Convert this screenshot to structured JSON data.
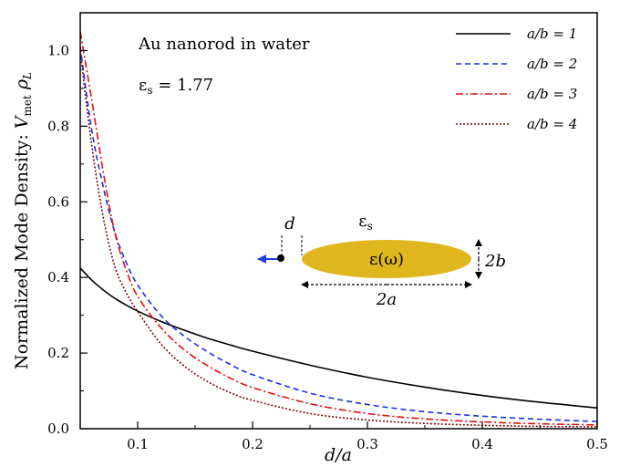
{
  "chart_data": {
    "type": "line",
    "title": "",
    "xlabel": "d/a",
    "ylabel": "Normalized Mode Density:  V_met ρ_L",
    "xlim": [
      0.05,
      0.5
    ],
    "ylim": [
      0,
      1.1
    ],
    "x_ticks": [
      0.1,
      0.2,
      0.3,
      0.4,
      0.5
    ],
    "y_ticks": [
      0.0,
      0.2,
      0.4,
      0.6,
      0.8,
      1.0
    ],
    "x_tick_labels": [
      "0.1",
      "0.2",
      "0.3",
      "0.4",
      "0.5"
    ],
    "y_tick_labels": [
      "0.0",
      "0.2",
      "0.4",
      "0.6",
      "0.8",
      "1.0"
    ],
    "grid": false,
    "legend_position": "top-right",
    "annotations": {
      "main": "Au nanorod in water",
      "eps_s": "εs = 1.77"
    },
    "inset": {
      "d_label": "d",
      "eps_s_label": "εs",
      "rod_label": "ε(ω)",
      "height_label": "2b",
      "length_label": "2a",
      "rod_color": "#E0B61E",
      "arrow_color": "#1F3FE0"
    },
    "series": [
      {
        "name": "a/b = 1",
        "color": "#000000",
        "dash": "solid",
        "x": [
          0.05,
          0.06,
          0.07,
          0.08,
          0.09,
          0.1,
          0.12,
          0.14,
          0.16,
          0.18,
          0.2,
          0.25,
          0.3,
          0.35,
          0.4,
          0.45,
          0.5
        ],
        "y": [
          0.425,
          0.393,
          0.367,
          0.345,
          0.327,
          0.311,
          0.284,
          0.261,
          0.24,
          0.222,
          0.205,
          0.168,
          0.136,
          0.11,
          0.088,
          0.07,
          0.055
        ]
      },
      {
        "name": "a/b = 2",
        "color": "#1A2FE8",
        "dash": "dash",
        "x": [
          0.05,
          0.06,
          0.07,
          0.08,
          0.09,
          0.1,
          0.12,
          0.14,
          0.16,
          0.18,
          0.2,
          0.25,
          0.3,
          0.35,
          0.4,
          0.45,
          0.5
        ],
        "y": [
          1.01,
          0.79,
          0.64,
          0.52,
          0.44,
          0.38,
          0.3,
          0.246,
          0.205,
          0.171,
          0.143,
          0.094,
          0.064,
          0.045,
          0.033,
          0.025,
          0.019
        ]
      },
      {
        "name": "a/b = 3",
        "color": "#E01010",
        "dash": "dashdot",
        "x": [
          0.05,
          0.06,
          0.07,
          0.08,
          0.09,
          0.1,
          0.12,
          0.14,
          0.16,
          0.18,
          0.2,
          0.25,
          0.3,
          0.35,
          0.4,
          0.45,
          0.5
        ],
        "y": [
          1.05,
          0.87,
          0.68,
          0.52,
          0.42,
          0.35,
          0.268,
          0.21,
          0.168,
          0.135,
          0.109,
          0.066,
          0.04,
          0.026,
          0.018,
          0.013,
          0.01
        ]
      },
      {
        "name": "a/b = 4",
        "color": "#7A0A0A",
        "dash": "dot",
        "x": [
          0.05,
          0.06,
          0.07,
          0.08,
          0.09,
          0.1,
          0.12,
          0.14,
          0.16,
          0.18,
          0.2,
          0.25,
          0.3,
          0.35,
          0.4,
          0.45,
          0.5
        ],
        "y": [
          1.0,
          0.75,
          0.56,
          0.43,
          0.36,
          0.31,
          0.225,
          0.167,
          0.126,
          0.096,
          0.075,
          0.04,
          0.023,
          0.014,
          0.009,
          0.006,
          0.005
        ]
      }
    ]
  }
}
